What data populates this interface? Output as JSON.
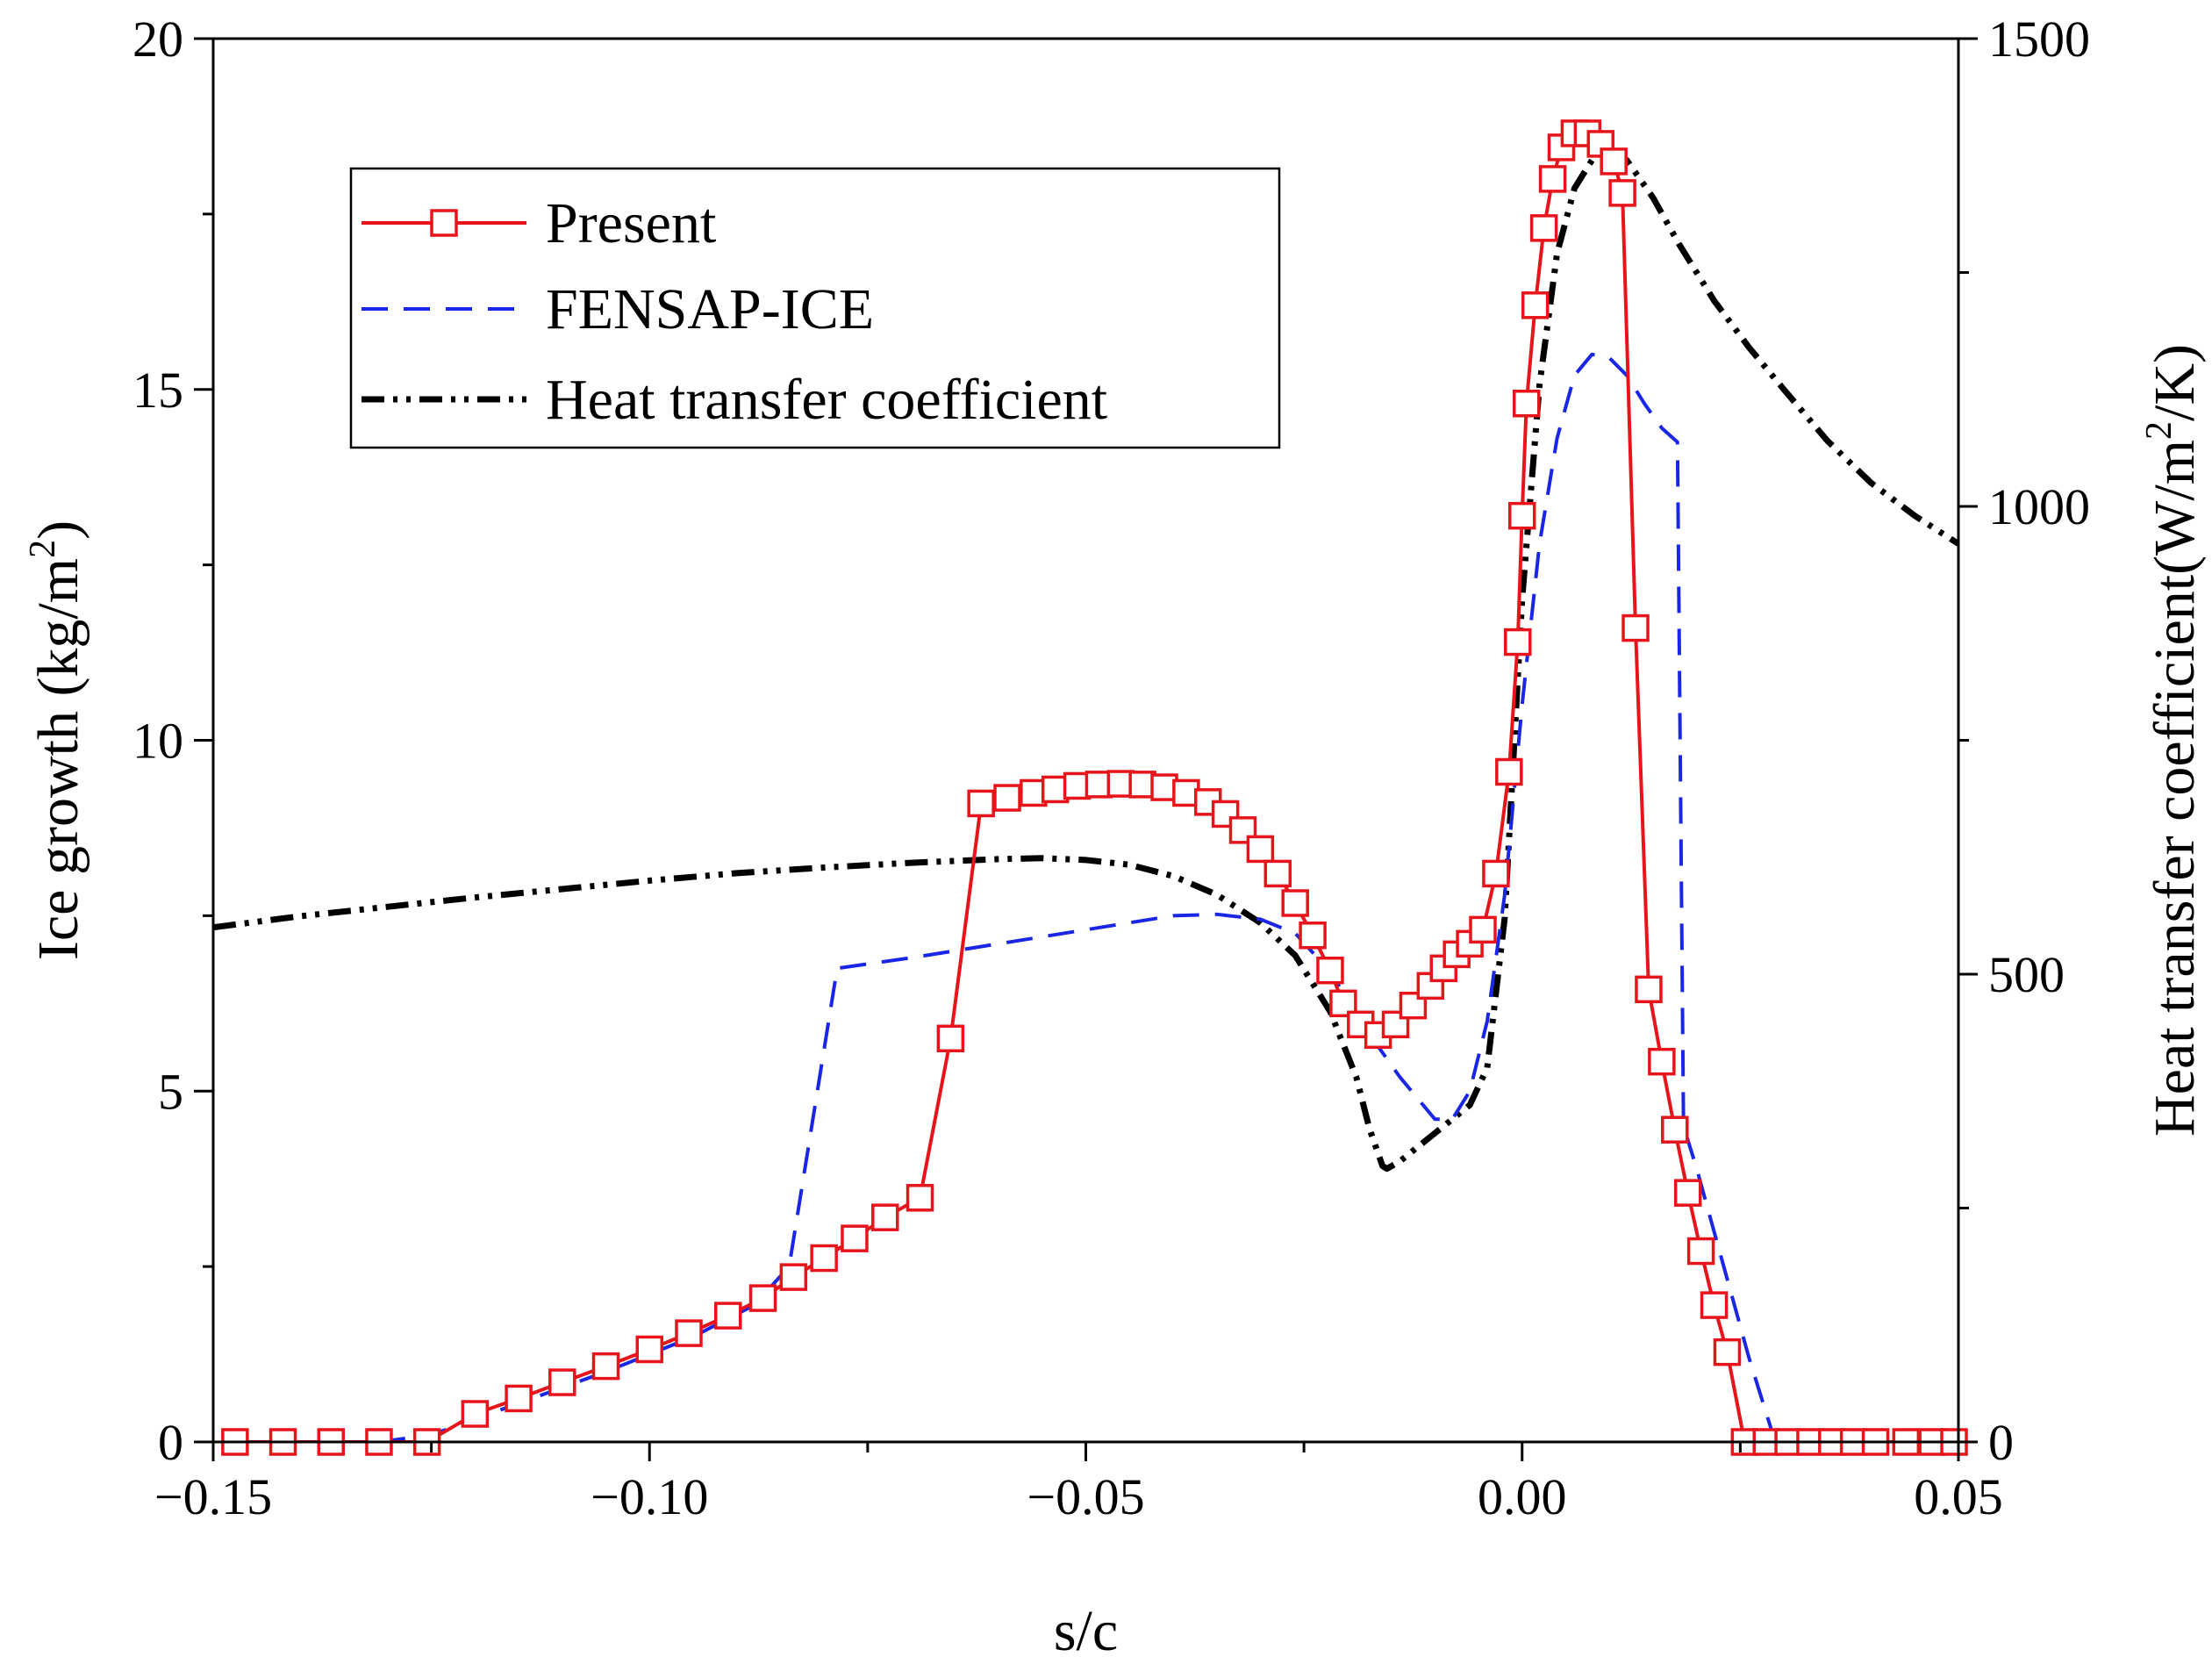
{
  "chart_data": {
    "type": "line",
    "title": "",
    "xlabel": "s/c",
    "ylabel_left": "Ice growth (kg/m",
    "ylabel_left_sup": "2",
    "ylabel_left_end": ")",
    "ylabel_right": "Heat transfer coefficient(W/m",
    "ylabel_right_sup": "2",
    "ylabel_right_end": "/K)",
    "xlim": [
      -0.15,
      0.05
    ],
    "ylim_left": [
      0,
      20
    ],
    "ylim_right": [
      0,
      1500
    ],
    "x_ticks": [
      -0.15,
      -0.1,
      -0.05,
      0.0,
      0.05
    ],
    "x_tick_labels": [
      "−0.15",
      "−0.10",
      "−0.05",
      "0.00",
      "0.05"
    ],
    "y_left_ticks": [
      0,
      5,
      10,
      15,
      20
    ],
    "y_left_tick_labels": [
      "0",
      "5",
      "10",
      "15",
      "20"
    ],
    "y_right_ticks": [
      0,
      500,
      1000,
      1500
    ],
    "y_right_tick_labels": [
      "0",
      "500",
      "1000",
      "1500"
    ],
    "legend_position": "top-left",
    "grid": false,
    "series": [
      {
        "name": "Present",
        "axis": "left",
        "color": "#e8141b",
        "style": "solid-square-markers",
        "points": [
          [
            -0.1475,
            0
          ],
          [
            -0.142,
            0
          ],
          [
            -0.1365,
            0
          ],
          [
            -0.131,
            0
          ],
          [
            -0.1255,
            0
          ],
          [
            -0.12,
            0.4
          ],
          [
            -0.115,
            0.62
          ],
          [
            -0.11,
            0.85
          ],
          [
            -0.105,
            1.08
          ],
          [
            -0.1,
            1.32
          ],
          [
            -0.0955,
            1.55
          ],
          [
            -0.091,
            1.8
          ],
          [
            -0.087,
            2.05
          ],
          [
            -0.0835,
            2.35
          ],
          [
            -0.08,
            2.62
          ],
          [
            -0.0765,
            2.9
          ],
          [
            -0.073,
            3.2
          ],
          [
            -0.069,
            3.48
          ],
          [
            -0.0655,
            5.75
          ],
          [
            -0.062,
            9.1
          ],
          [
            -0.059,
            9.18
          ],
          [
            -0.056,
            9.25
          ],
          [
            -0.0535,
            9.3
          ],
          [
            -0.051,
            9.35
          ],
          [
            -0.0485,
            9.37
          ],
          [
            -0.046,
            9.38
          ],
          [
            -0.0435,
            9.37
          ],
          [
            -0.041,
            9.33
          ],
          [
            -0.0385,
            9.25
          ],
          [
            -0.036,
            9.12
          ],
          [
            -0.034,
            8.95
          ],
          [
            -0.032,
            8.72
          ],
          [
            -0.03,
            8.45
          ],
          [
            -0.028,
            8.1
          ],
          [
            -0.026,
            7.68
          ],
          [
            -0.024,
            7.22
          ],
          [
            -0.022,
            6.72
          ],
          [
            -0.0205,
            6.25
          ],
          [
            -0.0185,
            5.95
          ],
          [
            -0.0165,
            5.8
          ],
          [
            -0.0145,
            5.95
          ],
          [
            -0.0125,
            6.22
          ],
          [
            -0.0105,
            6.5
          ],
          [
            -0.009,
            6.75
          ],
          [
            -0.0075,
            6.95
          ],
          [
            -0.006,
            7.1
          ],
          [
            -0.0045,
            7.3
          ],
          [
            -0.003,
            8.1
          ],
          [
            -0.0015,
            9.55
          ],
          [
            -0.0005,
            11.4
          ],
          [
            0.0,
            13.2
          ],
          [
            0.0005,
            14.8
          ],
          [
            0.0015,
            16.2
          ],
          [
            0.0025,
            17.3
          ],
          [
            0.0035,
            18.0
          ],
          [
            0.0045,
            18.45
          ],
          [
            0.006,
            18.65
          ],
          [
            0.0075,
            18.65
          ],
          [
            0.009,
            18.5
          ],
          [
            0.0105,
            18.25
          ],
          [
            0.0115,
            17.8
          ],
          [
            0.013,
            11.6
          ],
          [
            0.0145,
            6.45
          ],
          [
            0.016,
            5.42
          ],
          [
            0.0175,
            4.45
          ],
          [
            0.019,
            3.55
          ],
          [
            0.0205,
            2.72
          ],
          [
            0.022,
            1.95
          ],
          [
            0.0235,
            1.28
          ],
          [
            0.0255,
            0
          ],
          [
            0.028,
            0
          ],
          [
            0.0305,
            0
          ],
          [
            0.033,
            0
          ],
          [
            0.0355,
            0
          ],
          [
            0.038,
            0
          ],
          [
            0.0405,
            0
          ],
          [
            0.044,
            0
          ],
          [
            0.047,
            0
          ],
          [
            0.0495,
            0
          ]
        ]
      },
      {
        "name": "FENSAP-ICE",
        "axis": "left",
        "color": "#1a26e6",
        "style": "dashed",
        "points": [
          [
            -0.131,
            0
          ],
          [
            -0.125,
            0.1
          ],
          [
            -0.115,
            0.55
          ],
          [
            -0.105,
            1.0
          ],
          [
            -0.095,
            1.5
          ],
          [
            -0.088,
            1.95
          ],
          [
            -0.084,
            2.5
          ],
          [
            -0.0785,
            6.75
          ],
          [
            -0.07,
            6.9
          ],
          [
            -0.06,
            7.1
          ],
          [
            -0.05,
            7.3
          ],
          [
            -0.04,
            7.5
          ],
          [
            -0.035,
            7.52
          ],
          [
            -0.03,
            7.45
          ],
          [
            -0.026,
            7.25
          ],
          [
            -0.022,
            6.7
          ],
          [
            -0.018,
            5.9
          ],
          [
            -0.014,
            5.2
          ],
          [
            -0.01,
            4.6
          ],
          [
            -0.008,
            4.6
          ],
          [
            -0.006,
            5.0
          ],
          [
            -0.004,
            6.0
          ],
          [
            -0.002,
            7.8
          ],
          [
            0.0,
            10.5
          ],
          [
            0.002,
            12.8
          ],
          [
            0.004,
            14.3
          ],
          [
            0.006,
            15.2
          ],
          [
            0.008,
            15.5
          ],
          [
            0.01,
            15.45
          ],
          [
            0.012,
            15.2
          ],
          [
            0.014,
            14.8
          ],
          [
            0.016,
            14.45
          ],
          [
            0.0178,
            14.25
          ],
          [
            0.0185,
            4.5
          ],
          [
            0.02,
            3.9
          ],
          [
            0.022,
            3.0
          ],
          [
            0.024,
            2.1
          ],
          [
            0.026,
            1.2
          ],
          [
            0.028,
            0.4
          ],
          [
            0.029,
            0
          ]
        ]
      },
      {
        "name": "Heat transfer coefficient",
        "axis": "right",
        "color": "#000000",
        "style": "dash-dot-dot",
        "points": [
          [
            -0.15,
            550
          ],
          [
            -0.14,
            562
          ],
          [
            -0.13,
            572
          ],
          [
            -0.12,
            582
          ],
          [
            -0.11,
            591
          ],
          [
            -0.1,
            600
          ],
          [
            -0.09,
            608
          ],
          [
            -0.08,
            614
          ],
          [
            -0.07,
            619
          ],
          [
            -0.06,
            623
          ],
          [
            -0.055,
            624
          ],
          [
            -0.05,
            622
          ],
          [
            -0.045,
            617
          ],
          [
            -0.04,
            605
          ],
          [
            -0.035,
            585
          ],
          [
            -0.03,
            555
          ],
          [
            -0.026,
            520
          ],
          [
            -0.022,
            460
          ],
          [
            -0.019,
            390
          ],
          [
            -0.0175,
            335
          ],
          [
            -0.016,
            295
          ],
          [
            -0.0155,
            292
          ],
          [
            -0.014,
            300
          ],
          [
            -0.012,
            315
          ],
          [
            -0.01,
            330
          ],
          [
            -0.008,
            345
          ],
          [
            -0.006,
            360
          ],
          [
            -0.004,
            400
          ],
          [
            -0.002,
            560
          ],
          [
            0.0,
            900
          ],
          [
            0.002,
            1130
          ],
          [
            0.004,
            1270
          ],
          [
            0.006,
            1340
          ],
          [
            0.008,
            1370
          ],
          [
            0.01,
            1380
          ],
          [
            0.012,
            1370
          ],
          [
            0.015,
            1330
          ],
          [
            0.018,
            1280
          ],
          [
            0.022,
            1220
          ],
          [
            0.026,
            1170
          ],
          [
            0.03,
            1125
          ],
          [
            0.035,
            1070
          ],
          [
            0.04,
            1025
          ],
          [
            0.045,
            990
          ],
          [
            0.05,
            960
          ]
        ]
      }
    ]
  }
}
